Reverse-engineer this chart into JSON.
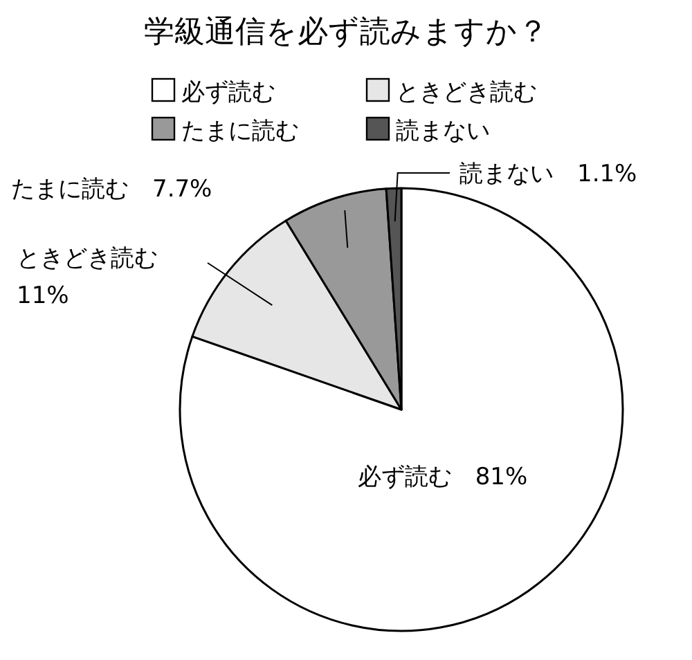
{
  "chart_data": {
    "type": "pie",
    "title": "学級通信を必ず読みますか？",
    "categories": [
      "必ず読む",
      "ときどき読む",
      "たまに読む",
      "読まない"
    ],
    "values": [
      81,
      11,
      7.7,
      1.1
    ],
    "value_labels": [
      "81%",
      "11%",
      "7.7%",
      "1.1%"
    ],
    "colors": [
      "#ffffff",
      "#e6e6e6",
      "#999999",
      "#555555"
    ],
    "legend": "top"
  }
}
